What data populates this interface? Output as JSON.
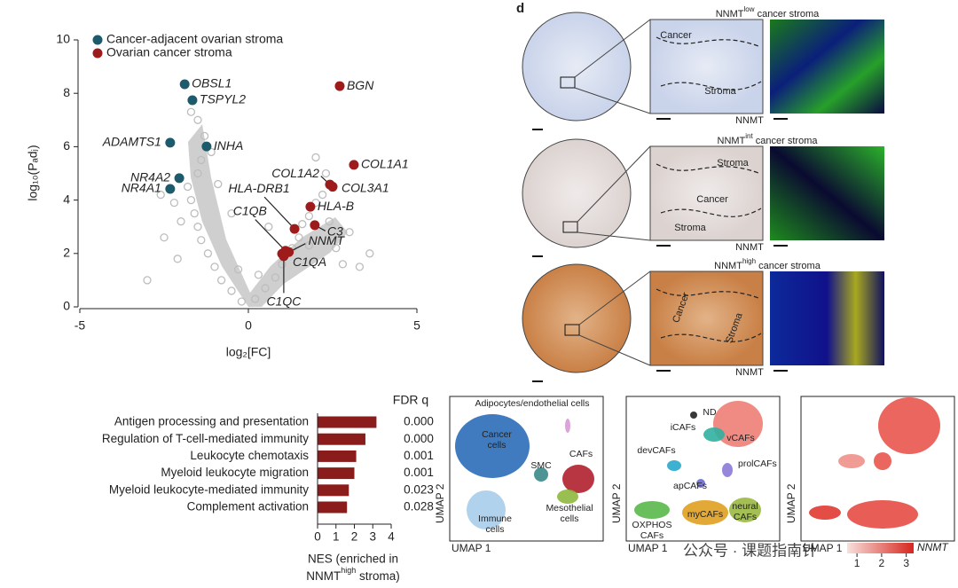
{
  "chart_data": [
    {
      "type": "scatter",
      "y_label": "log₁₀(Pₐdⱼ)",
      "x_label": "log₂[FC]",
      "xlim": [
        -5,
        5
      ],
      "ylim": [
        0,
        10
      ],
      "xticks": [
        -5,
        0,
        5
      ],
      "yticks": [
        0,
        2,
        4,
        6,
        8,
        10
      ],
      "legend": "top-left",
      "background": {
        "color": "#bdbdbd",
        "x": [
          -0.2,
          0.2,
          -0.5,
          0.5,
          -0.8,
          0.8,
          -1.0,
          1.0,
          -1.2,
          1.3,
          -1.4,
          1.5,
          -1.5,
          1.6,
          -1.6,
          1.8,
          -1.7,
          2.0,
          -1.8,
          2.2,
          -1.5,
          2.3,
          -1.4,
          2.0,
          -1.3,
          -1.5,
          -1.7,
          -0.9,
          -0.5,
          0.6,
          1.8,
          2.6,
          3.0,
          2.8,
          -2.0,
          -2.2,
          -2.5,
          -2.1,
          -3.0,
          3.3,
          0.3,
          -0.3,
          -1.1,
          2.4,
          -2.6,
          3.6
        ],
        "y": [
          0.2,
          0.3,
          0.6,
          0.7,
          1.0,
          1.1,
          1.5,
          1.6,
          2.0,
          2.2,
          2.5,
          2.6,
          3.0,
          3.1,
          3.5,
          3.4,
          4.0,
          3.9,
          4.5,
          4.2,
          5.0,
          5.0,
          5.5,
          5.6,
          6.4,
          7.0,
          7.3,
          4.6,
          3.5,
          3.0,
          2.3,
          2.2,
          2.8,
          1.6,
          3.2,
          3.9,
          2.6,
          1.8,
          1.0,
          1.5,
          1.2,
          1.4,
          5.8,
          3.2,
          4.2,
          2.0
        ]
      },
      "series": [
        {
          "name": "Cancer-adjacent ovarian stroma",
          "color": "#1d5a6b",
          "labels": [
            "OBSL1",
            "TSPYL2",
            "ADAMTS1",
            "INHA",
            "NR4A2",
            "NR4A1"
          ],
          "x": [
            -1.89,
            -1.66,
            -2.32,
            -1.24,
            -2.05,
            -2.32
          ],
          "values": [
            8.34,
            7.74,
            6.15,
            6.01,
            4.82,
            4.42
          ]
        },
        {
          "name": "Ovarian cancer stroma",
          "color": "#9e1b1b",
          "labels": [
            "BGN",
            "COL1A1",
            "COL1A2",
            "COL3A1",
            "HLA-B",
            "HLA-DRB1",
            "C3",
            "C1QB",
            "NNMT",
            "C1QA",
            "C1QC"
          ],
          "x": [
            2.71,
            3.13,
            2.42,
            2.5,
            1.84,
            1.37,
            1.97,
            1.1,
            1.2,
            1.0,
            1.05
          ],
          "values": [
            8.27,
            5.32,
            4.58,
            4.5,
            3.75,
            2.92,
            3.06,
            2.1,
            2.05,
            1.99,
            1.9
          ]
        }
      ]
    },
    {
      "type": "barh",
      "color": "#8b1c1c",
      "categories": [
        "Antigen processing and presentation",
        "Regulation of T-cell-mediated immunity",
        "Leukocyte chemotaxis",
        "Myeloid leukocyte migration",
        "Myeloid leukocyte-mediated immunity",
        "Complement activation"
      ],
      "values": [
        3.2,
        2.6,
        2.1,
        2.0,
        1.7,
        1.6
      ],
      "fdr_header": "FDR q",
      "fdr_q": [
        "0.000",
        "0.000",
        "0.001",
        "0.001",
        "0.023",
        "0.028"
      ],
      "xlim": [
        0,
        4
      ],
      "xticks": [
        0,
        1,
        2,
        3,
        4
      ],
      "x_label": {
        "line1": "NES (enriched in",
        "main": "NNMT",
        "sup": "high",
        "rest": " stroma)"
      }
    }
  ],
  "panel_d": {
    "label": "d",
    "rows": [
      {
        "main": "NNMT",
        "sup": "low",
        "rest": " cancer stroma",
        "regions": [
          "Cancer",
          "Stroma"
        ],
        "stain": "NNMT"
      },
      {
        "main": "NNMT",
        "sup": "int",
        "rest": " cancer stroma",
        "regions": [
          "Stroma",
          "Cancer",
          "Stroma"
        ],
        "stain": "NNMT"
      },
      {
        "main": "NNMT",
        "sup": "high",
        "rest": " cancer stroma",
        "regions": [
          "Cancer",
          "Stroma"
        ],
        "stain": "NNMT"
      }
    ]
  },
  "umap_panels": [
    {
      "x_label": "UMAP 1",
      "y_label": "UMAP 2",
      "clusters": [
        [
          "Adipocytes/endothelial cells"
        ],
        [
          "Cancer",
          "cells"
        ],
        [
          "SMC"
        ],
        [
          "CAFs"
        ],
        [
          "Mesothelial",
          "cells"
        ],
        [
          "Immune",
          "cells"
        ]
      ]
    },
    {
      "x_label": "UMAP 1",
      "y_label": "UMAP 2",
      "clusters": [
        [
          "ND"
        ],
        [
          "iCAFs"
        ],
        [
          "vCAFs"
        ],
        [
          "devCAFs"
        ],
        [
          "prolCAFs"
        ],
        [
          "apCAFs"
        ],
        [
          "myCAFs"
        ],
        [
          "neural",
          "CAFs"
        ],
        [
          "OXPHOS",
          "CAFs"
        ]
      ]
    },
    {
      "x_label": "UMAP 1",
      "y_label": "UMAP 2",
      "colorbar": {
        "label": "NNMT",
        "lim": [
          0.6,
          3.3
        ],
        "ticks": [
          1,
          2,
          3
        ]
      }
    }
  ],
  "watermark": "公众号 · 课题指南针"
}
